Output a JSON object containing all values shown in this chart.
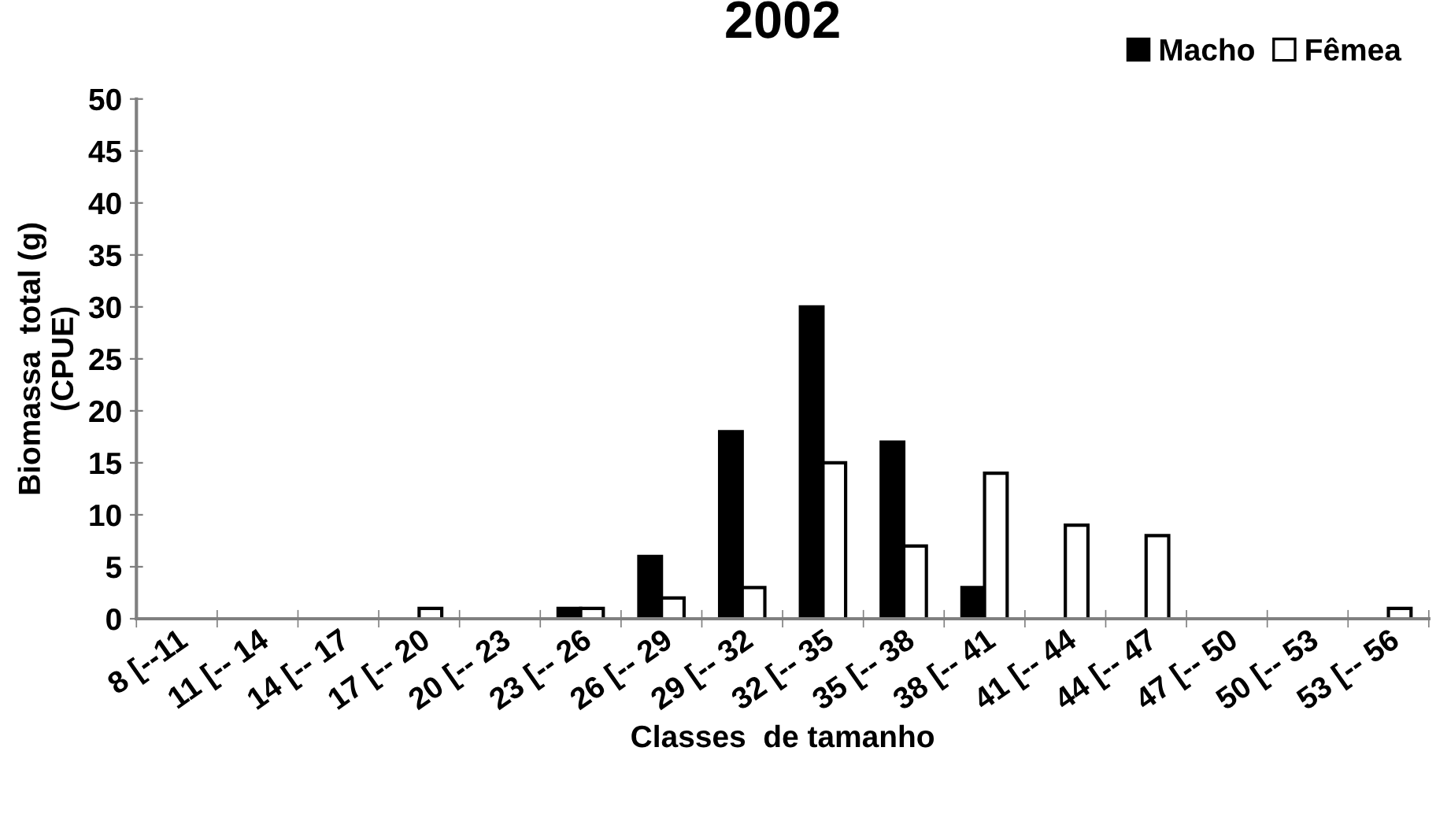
{
  "chart_data": {
    "type": "bar",
    "title": "2002",
    "xlabel": "Classes  de tamanho",
    "ylabel": "Biomassa  total (g)\n(CPUE)",
    "categories": [
      "8 [--11",
      "11 [-- 14",
      "14 [-- 17",
      "17 [-- 20",
      "20 [-- 23",
      "23 [-- 26",
      "26 [-- 29",
      "29 [-- 32",
      "32 [-- 35",
      "35 [-- 38",
      "38 [-- 41",
      "41 [-- 44",
      "44 [-- 47",
      "47 [-- 50",
      "50 [-- 53",
      "53 [-- 56"
    ],
    "series": [
      {
        "name": "Macho",
        "color": "#000000",
        "values": [
          0,
          0,
          0,
          0,
          0,
          1,
          6,
          18,
          30,
          17,
          3,
          0,
          0,
          0,
          0,
          0
        ]
      },
      {
        "name": "Fêmea",
        "color": "#ffffff",
        "values": [
          0,
          0,
          0,
          1,
          0,
          1,
          2,
          3,
          15,
          7,
          14,
          9,
          8,
          0,
          0,
          1
        ]
      }
    ],
    "ylim": [
      0,
      50
    ],
    "yticks": [
      0,
      5,
      10,
      15,
      20,
      25,
      30,
      35,
      40,
      45,
      50
    ],
    "grid": false,
    "legend": "top right"
  }
}
